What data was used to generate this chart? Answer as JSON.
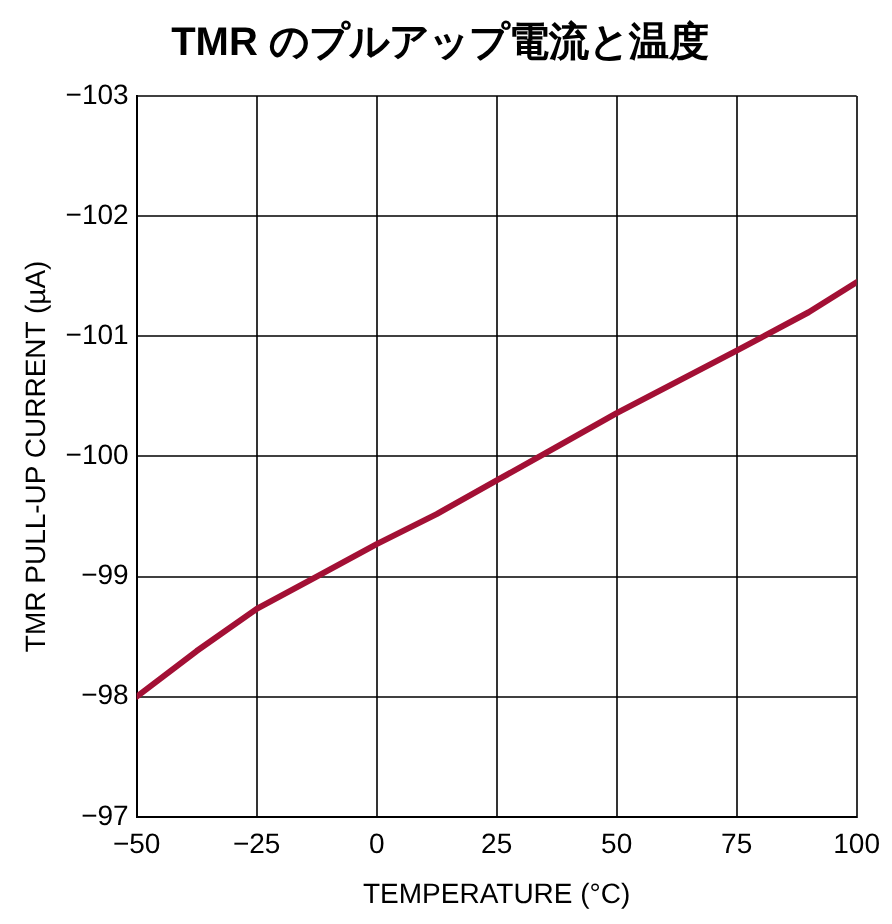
{
  "chart_data": {
    "type": "line",
    "title": "TMR のプルアップ電流と温度",
    "xlabel": "TEMPERATURE (°C)",
    "ylabel": "TMR PULL-UP CURRENT (µA)",
    "x": [
      -50,
      -37.5,
      -25,
      -12.5,
      0,
      12.5,
      25,
      37.5,
      50,
      62.5,
      75,
      90,
      100
    ],
    "series": [
      {
        "color": "#a31035",
        "values": [
          -98.0,
          -98.38,
          -98.73,
          -99.0,
          -99.27,
          -99.52,
          -99.8,
          -100.08,
          -100.36,
          -100.62,
          -100.88,
          -101.2,
          -101.45
        ]
      }
    ],
    "xlim": [
      -50,
      100
    ],
    "xticks": [
      {
        "value": -50,
        "label": "−50"
      },
      {
        "value": -25,
        "label": "−25"
      },
      0,
      25,
      50,
      75,
      100
    ],
    "ylim": [
      -97,
      -103
    ],
    "yticks": [
      {
        "value": -97,
        "label": "−97"
      },
      {
        "value": -98,
        "label": "−98"
      },
      {
        "value": -99,
        "label": "−99"
      },
      {
        "value": -100,
        "label": "−100"
      },
      {
        "value": -101,
        "label": "−101"
      },
      {
        "value": -102,
        "label": "−102"
      },
      {
        "value": -103,
        "label": "−103"
      }
    ],
    "grid": true,
    "legend": false,
    "marker": "none",
    "line_style": "solid"
  }
}
